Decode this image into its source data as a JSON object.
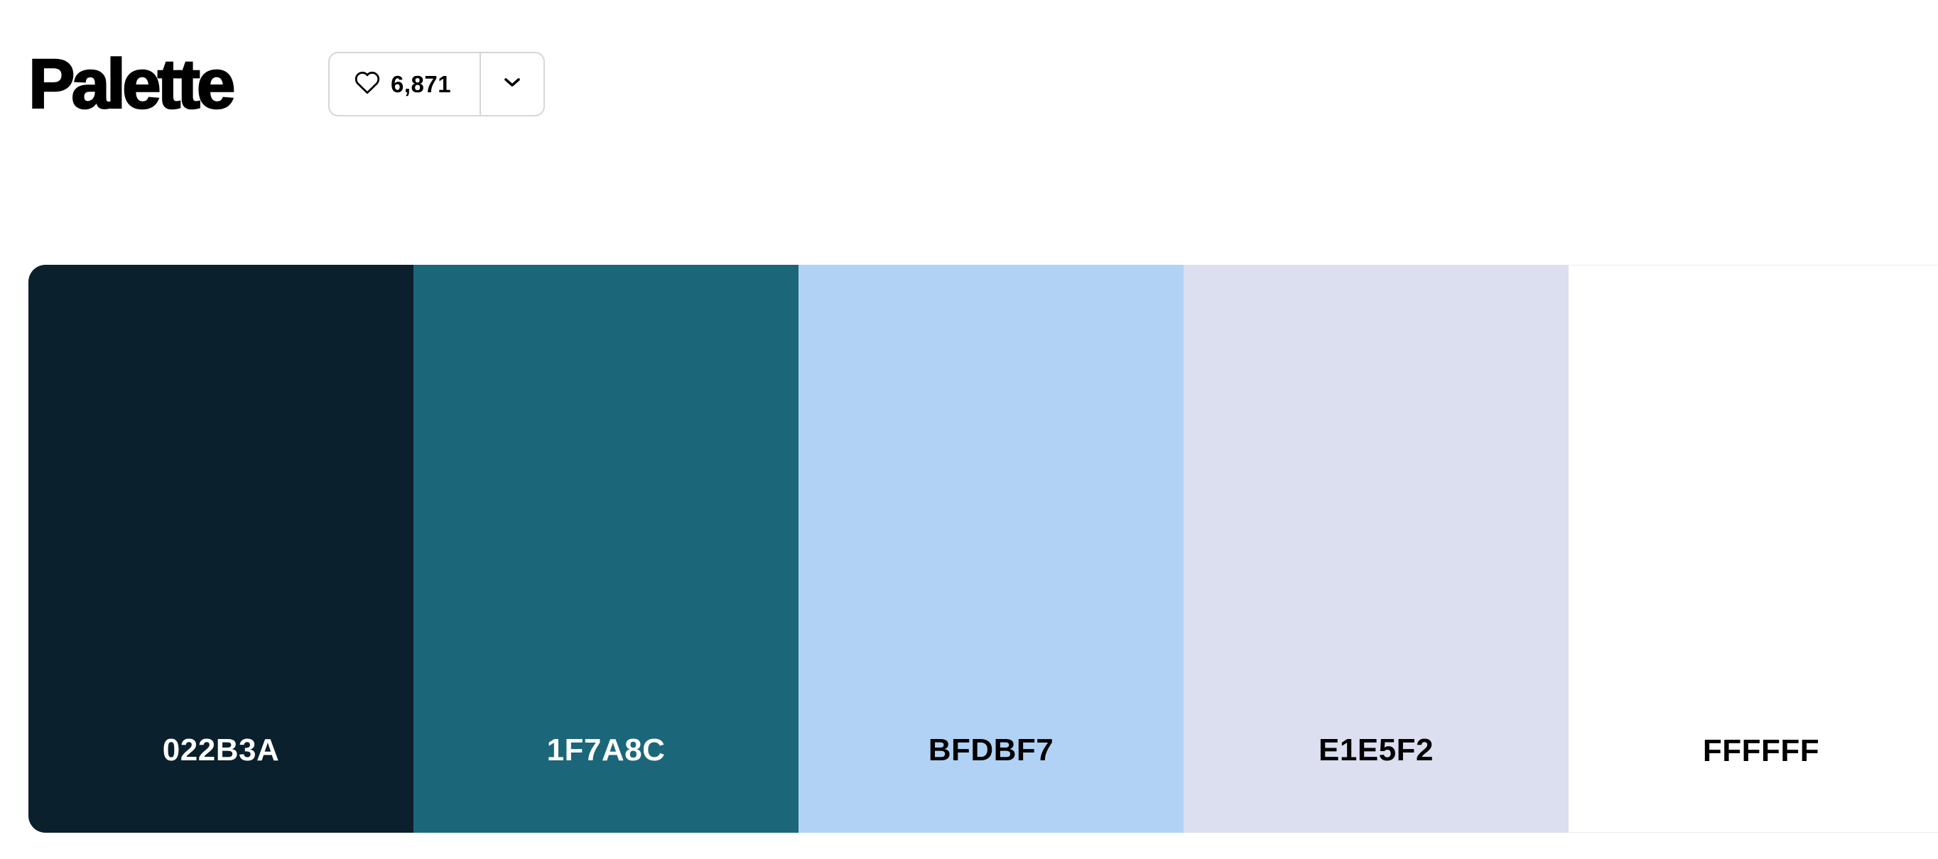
{
  "header": {
    "title": "Palette",
    "likes": "6,871",
    "like_icon": "heart-icon",
    "more_icon": "chevron-down-icon"
  },
  "palette": {
    "colors": [
      {
        "hex": "022B3A",
        "color": "#0A202C",
        "text_color": "#FFFFFF"
      },
      {
        "hex": "1F7A8C",
        "color": "#1C667A",
        "text_color": "#FFFFFF"
      },
      {
        "hex": "BFDBF7",
        "color": "#B1D2F5",
        "text_color": "#000000"
      },
      {
        "hex": "E1E5F2",
        "color": "#DBDFF0",
        "text_color": "#000000"
      },
      {
        "hex": "FFFFFF",
        "color": "#FFFFFF",
        "text_color": "#000000"
      }
    ]
  }
}
